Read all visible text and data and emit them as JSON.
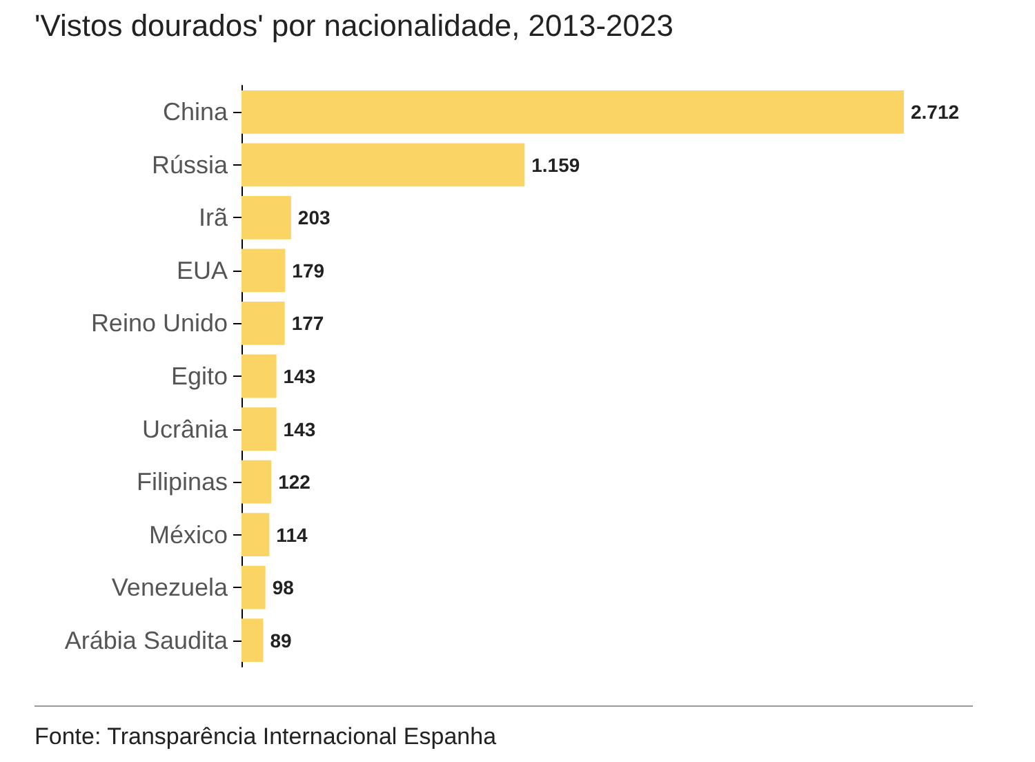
{
  "chart_data": {
    "type": "bar",
    "orientation": "horizontal",
    "title": "'Vistos dourados' por nacionalidade, 2013-2023",
    "categories": [
      "China",
      "Rússia",
      "Irã",
      "EUA",
      "Reino Unido",
      "Egito",
      "Ucrânia",
      "Filipinas",
      "México",
      "Venezuela",
      "Arábia Saudita"
    ],
    "values": [
      2712,
      1159,
      203,
      179,
      177,
      143,
      143,
      122,
      114,
      98,
      89
    ],
    "value_labels": [
      "2.712",
      "1.159",
      "203",
      "179",
      "177",
      "143",
      "143",
      "122",
      "114",
      "98",
      "89"
    ],
    "color": "#fbd466",
    "annotations": [
      "Fonte: Transparência Internacional Espanha"
    ]
  }
}
